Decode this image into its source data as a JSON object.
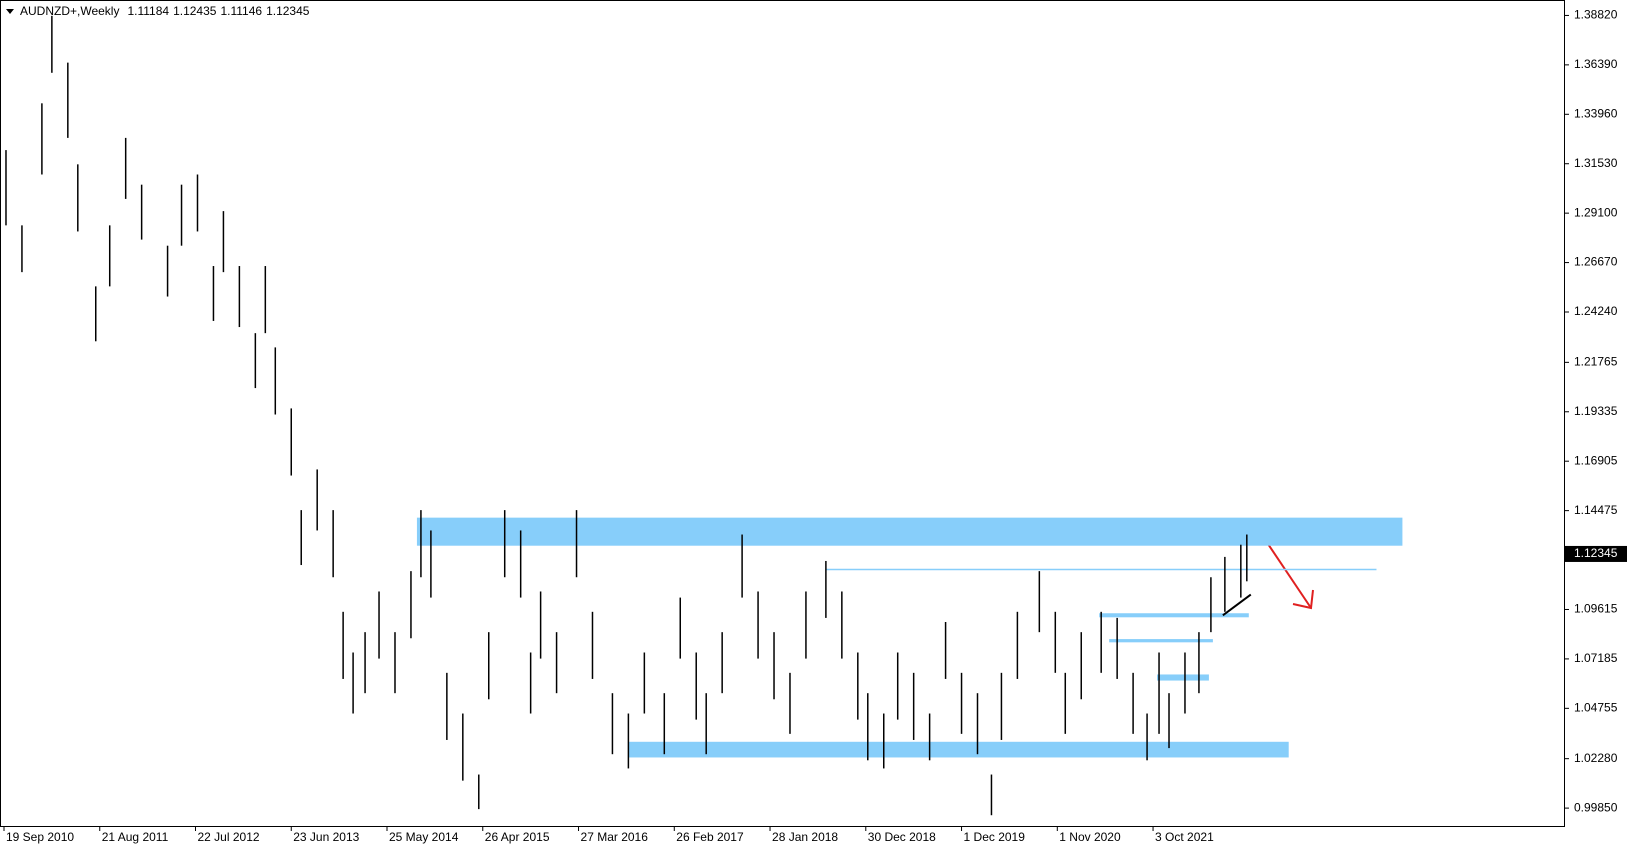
{
  "chart_data": {
    "type": "ohlc",
    "header": {
      "symbol": "AUDNZD+,Weekly",
      "open": 1.11184,
      "high": 1.12435,
      "low": 1.11146,
      "close": 1.12345
    },
    "current_price": 1.12345,
    "x": [
      1,
      9,
      19,
      24,
      32,
      37,
      46,
      53,
      61,
      69,
      82,
      89,
      97,
      105,
      110,
      118,
      126,
      131,
      136,
      144,
      149,
      157,
      165,
      170,
      175,
      181,
      188,
      196,
      204,
      209,
      214,
      222,
      230,
      238,
      243,
      251,
      259,
      264,
      269,
      277,
      287,
      295,
      305,
      313,
      321,
      331,
      339,
      347,
      352,
      360,
      370,
      378,
      386,
      394,
      402,
      412,
      420,
      428,
      433,
      441,
      448,
      456,
      464,
      472,
      480,
      488,
      495,
      500,
      508,
      519,
      527,
      532,
      540,
      550,
      558,
      566,
      573,
      579,
      584,
      592,
      599,
      605,
      612,
      620,
      623
    ],
    "high": [
      1.322,
      1.285,
      1.345,
      1.388,
      1.365,
      1.315,
      1.255,
      1.285,
      1.328,
      1.305,
      1.275,
      1.305,
      1.31,
      1.265,
      1.292,
      1.265,
      1.232,
      1.265,
      1.225,
      1.195,
      1.145,
      1.165,
      1.145,
      1.095,
      1.075,
      1.085,
      1.105,
      1.085,
      1.115,
      1.145,
      1.135,
      1.065,
      1.045,
      1.015,
      1.085,
      1.145,
      1.135,
      1.075,
      1.105,
      1.085,
      1.145,
      1.095,
      1.055,
      1.045,
      1.075,
      1.055,
      1.102,
      1.075,
      1.055,
      1.085,
      1.133,
      1.105,
      1.085,
      1.065,
      1.105,
      1.12,
      1.105,
      1.075,
      1.055,
      1.045,
      1.075,
      1.065,
      1.045,
      1.09,
      1.065,
      1.055,
      1.015,
      1.065,
      1.095,
      1.115,
      1.095,
      1.065,
      1.085,
      1.095,
      1.092,
      1.065,
      1.045,
      1.075,
      1.055,
      1.075,
      1.085,
      1.112,
      1.122,
      1.128,
      1.133
    ],
    "low": [
      1.285,
      1.262,
      1.31,
      1.36,
      1.328,
      1.282,
      1.228,
      1.255,
      1.298,
      1.278,
      1.25,
      1.275,
      1.282,
      1.238,
      1.262,
      1.235,
      1.205,
      1.232,
      1.192,
      1.162,
      1.118,
      1.135,
      1.112,
      1.062,
      1.045,
      1.055,
      1.072,
      1.055,
      1.082,
      1.112,
      1.102,
      1.032,
      1.012,
      0.998,
      1.052,
      1.112,
      1.102,
      1.045,
      1.072,
      1.055,
      1.112,
      1.062,
      1.025,
      1.018,
      1.045,
      1.025,
      1.072,
      1.042,
      1.025,
      1.055,
      1.102,
      1.072,
      1.052,
      1.035,
      1.072,
      1.092,
      1.072,
      1.042,
      1.022,
      1.018,
      1.042,
      1.032,
      1.022,
      1.062,
      1.035,
      1.025,
      0.995,
      1.032,
      1.062,
      1.085,
      1.065,
      1.035,
      1.052,
      1.065,
      1.062,
      1.035,
      1.022,
      1.035,
      1.028,
      1.045,
      1.055,
      1.085,
      1.095,
      1.102,
      1.11
    ],
    "color": "#000000",
    "xlim": [
      -1.5,
      782
    ],
    "xticks": [
      {
        "value": 0,
        "label": "19 Sep 2010"
      },
      {
        "value": 48,
        "label": "21 Aug 2011"
      },
      {
        "value": 96,
        "label": "22 Jul 2012"
      },
      {
        "value": 144,
        "label": "23 Jun 2013"
      },
      {
        "value": 192,
        "label": "25 May 2014"
      },
      {
        "value": 240,
        "label": "26 Apr 2015"
      },
      {
        "value": 288,
        "label": "27 Mar 2016"
      },
      {
        "value": 336,
        "label": "26 Feb 2017"
      },
      {
        "value": 384,
        "label": "28 Jan 2018"
      },
      {
        "value": 432,
        "label": "30 Dec 2018"
      },
      {
        "value": 480,
        "label": "1 Dec 2019"
      },
      {
        "value": 528,
        "label": "1 Nov 2020"
      },
      {
        "value": 576,
        "label": "3 Oct 2021"
      }
    ],
    "ylim": [
      0.9897,
      1.3953
    ],
    "yticks": [
      {
        "value": 1.3882,
        "label": "1.38820"
      },
      {
        "value": 1.3639,
        "label": "1.36390"
      },
      {
        "value": 1.3396,
        "label": "1.33960"
      },
      {
        "value": 1.3153,
        "label": "1.31530"
      },
      {
        "value": 1.291,
        "label": "1.29100"
      },
      {
        "value": 1.2667,
        "label": "1.26670"
      },
      {
        "value": 1.2424,
        "label": "1.24240"
      },
      1.21765,
      1.19335,
      1.16905,
      1.14475,
      1.09615,
      1.07185,
      1.04755,
      {
        "value": 1.0228,
        "label": "1.02280"
      },
      {
        "value": 0.9985,
        "label": "0.99850"
      }
    ],
    "zones": [
      {
        "x": [
          207,
          701
        ],
        "y": [
          1.1275,
          1.1413
        ]
      },
      {
        "x": [
          313,
          644
        ],
        "y": [
          1.0234,
          1.0311
        ]
      },
      {
        "x": [
          549,
          624
        ],
        "y": [
          1.0923,
          1.0943
        ]
      },
      {
        "x": [
          554,
          606
        ],
        "y": [
          1.08,
          1.0816
        ]
      },
      {
        "x": [
          578,
          604
        ],
        "y": [
          1.0612,
          1.0642
        ]
      }
    ],
    "zone_color": "#87cefa",
    "lines": [
      {
        "x": [
          412,
          688
        ],
        "y": [
          1.1158,
          1.1158
        ],
        "color": "#87cefa"
      },
      {
        "x": [
          611,
          625
        ],
        "y": [
          1.0933,
          1.1035
        ],
        "color": "#000000"
      }
    ]
  }
}
